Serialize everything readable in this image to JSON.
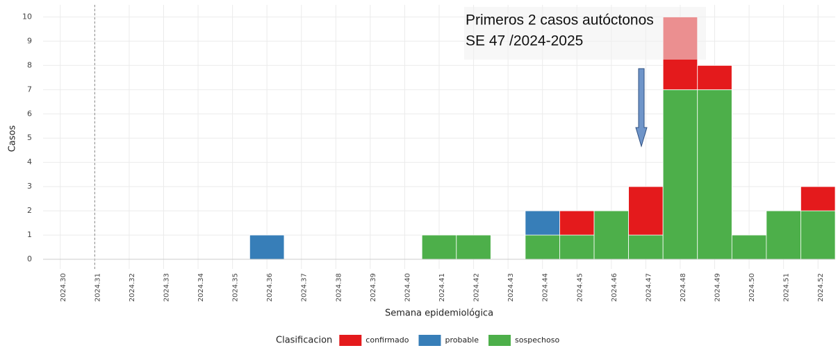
{
  "chart_data": {
    "type": "stacked_bar",
    "annotation": [
      "Primeros 2 casos autóctonos",
      "SE 47 /2024-2025"
    ],
    "x_label": "Semana epidemiológica",
    "y_label": "Casos",
    "legend_title": "Clasificacion",
    "categories": [
      "2024.30",
      "2024.31",
      "2024.32",
      "2024.33",
      "2024.34",
      "2024.35",
      "2024.36",
      "2024.37",
      "2024.38",
      "2024.39",
      "2024.40",
      "2024.41",
      "2024.42",
      "2024.43",
      "2024.44",
      "2024.45",
      "2024.46",
      "2024.47",
      "2024.48",
      "2024.49",
      "2024.50",
      "2024.51",
      "2024.52"
    ],
    "series": [
      {
        "name": "confirmado",
        "color": "#e41a1c",
        "values": [
          0,
          0,
          0,
          0,
          0,
          0,
          0,
          0,
          0,
          0,
          0,
          0,
          0,
          0,
          0,
          1,
          0,
          2,
          3,
          1,
          0,
          0,
          1
        ]
      },
      {
        "name": "probable",
        "color": "#377eb8",
        "values": [
          0,
          0,
          0,
          0,
          0,
          0,
          1,
          0,
          0,
          0,
          0,
          0,
          0,
          0,
          1,
          0,
          0,
          0,
          0,
          0,
          0,
          0,
          0
        ]
      },
      {
        "name": "sospechoso",
        "color": "#4daf4a",
        "values": [
          0,
          0,
          0,
          0,
          0,
          0,
          0,
          0,
          0,
          0,
          0,
          1,
          1,
          0,
          1,
          1,
          2,
          1,
          7,
          7,
          1,
          2,
          2
        ]
      }
    ],
    "ylim": [
      -0.4,
      10.5
    ],
    "yticks": [
      0,
      1,
      2,
      3,
      4,
      5,
      6,
      7,
      8,
      9,
      10
    ],
    "grid": true
  }
}
